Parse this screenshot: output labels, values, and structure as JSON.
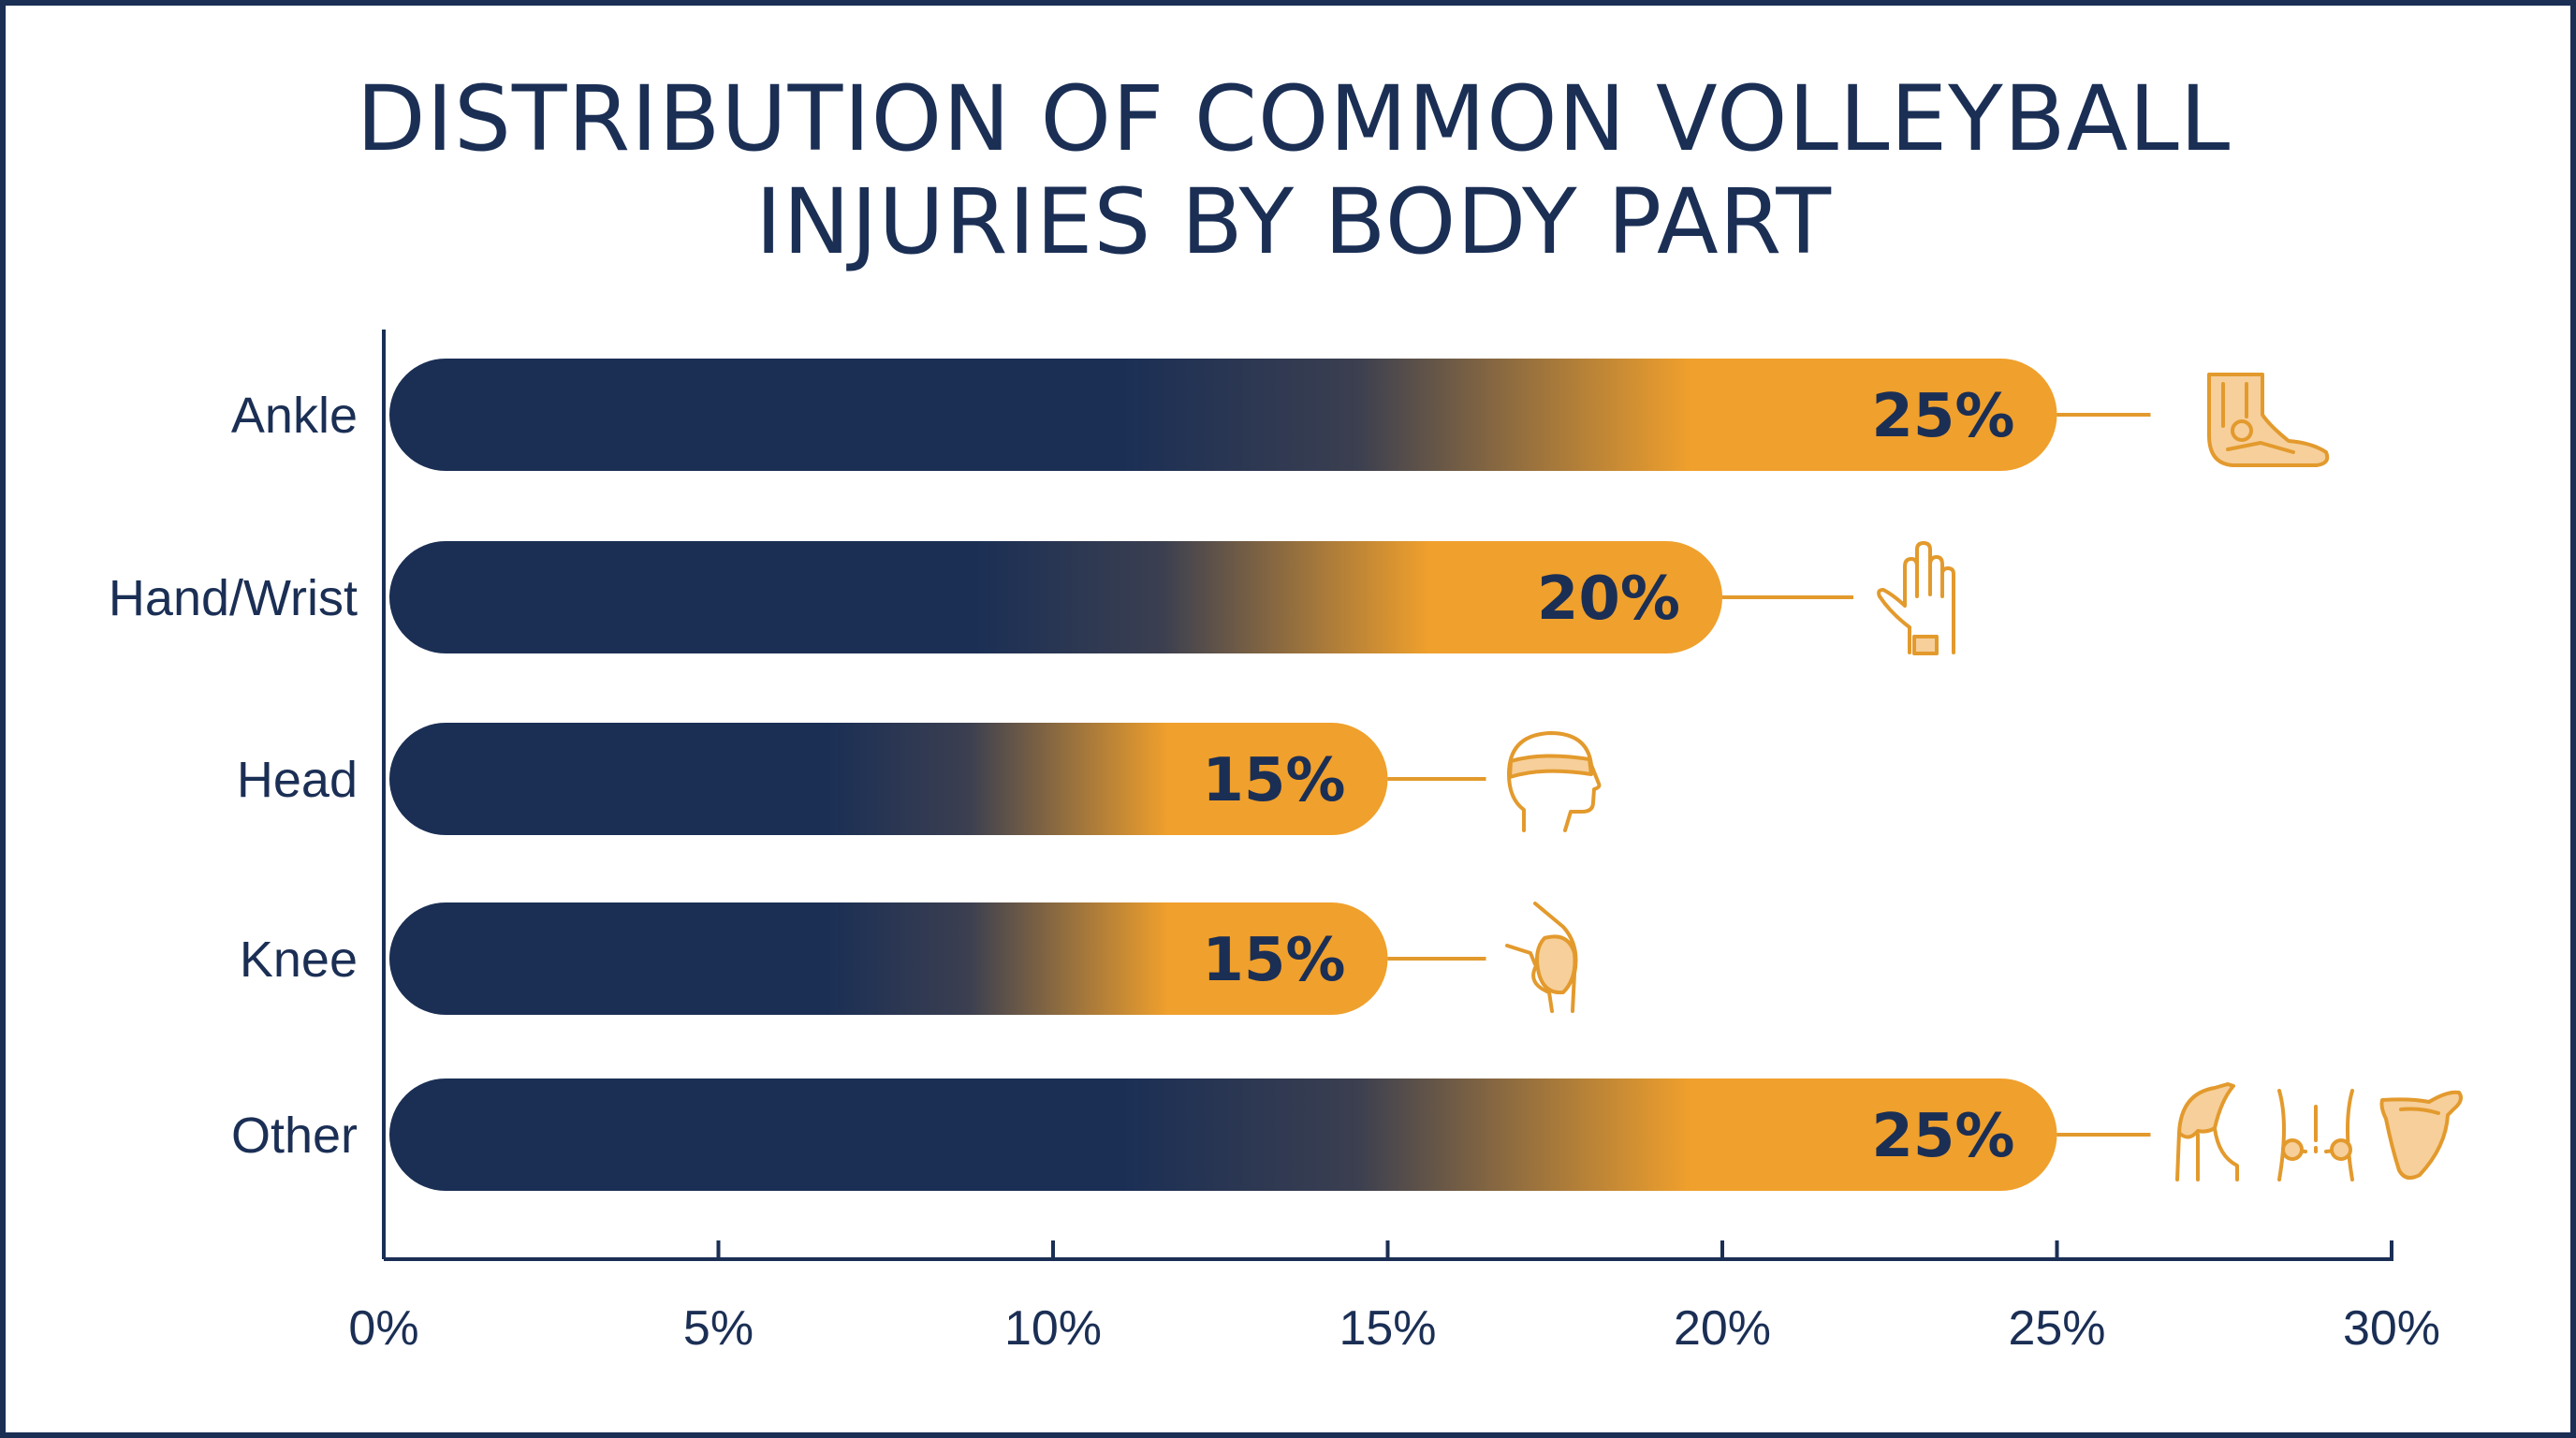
{
  "chart_data": {
    "type": "bar",
    "orientation": "horizontal",
    "title_lines": [
      "DISTRIBUTION OF COMMON VOLLEYBALL",
      "INJURIES BY BODY PART"
    ],
    "categories": [
      "Ankle",
      "Hand/Wrist",
      "Head",
      "Knee",
      "Other"
    ],
    "values": [
      25,
      20,
      15,
      15,
      25
    ],
    "data_labels": [
      "25%",
      "20%",
      "15%",
      "15%",
      "25%"
    ],
    "icons": [
      [
        "ankle-icon"
      ],
      [
        "hand-wrist-icon"
      ],
      [
        "head-icon"
      ],
      [
        "knee-icon"
      ],
      [
        "shoulder-icon",
        "back-icon",
        "shoulder-blade-icon"
      ]
    ],
    "xlim": [
      0,
      30
    ],
    "x_ticks": [
      0,
      5,
      10,
      15,
      20,
      25,
      30
    ],
    "x_tick_labels": [
      "0%",
      "5%",
      "10%",
      "15%",
      "20%",
      "25%",
      "30%"
    ],
    "grid": false,
    "legend": "none"
  },
  "colors": {
    "navy": "#1b2f55",
    "orange": "#f0a02c",
    "icon_orange": "#e39a2d",
    "icon_fill": "#f6cf9b",
    "background": "#ffffff"
  }
}
